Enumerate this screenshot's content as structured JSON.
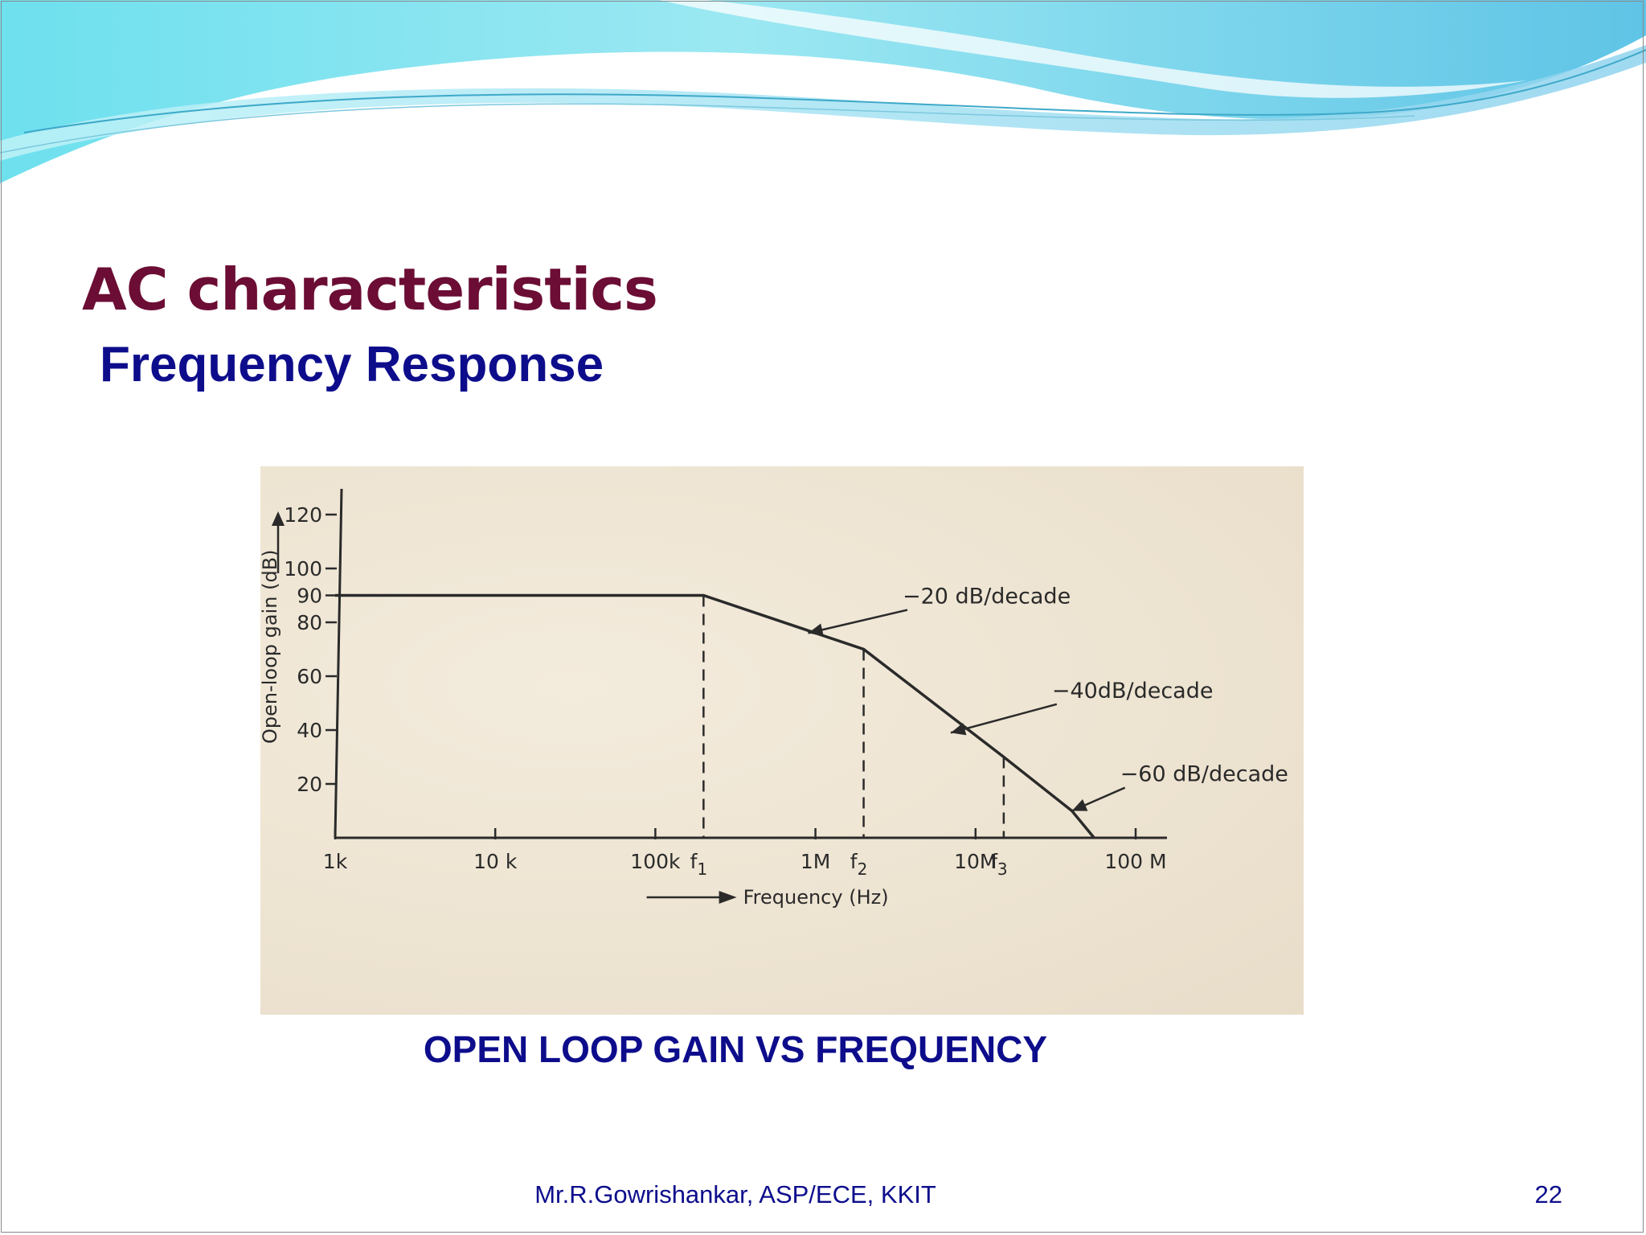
{
  "slide": {
    "title": "AC characteristics",
    "subtitle": "Frequency Response",
    "caption": "OPEN LOOP GAIN VS FREQUENCY",
    "footer_author": "Mr.R.Gowrishankar, ASP/ECE, KKIT",
    "page_number": "22"
  },
  "colors": {
    "title": "#6b0d34",
    "subtitle": "#0d0d8c",
    "chart_background": "#efe6d5",
    "ink": "#2a2a2a"
  },
  "chart_data": {
    "type": "line",
    "xscale": "log",
    "ylabel": "Open-loop gain (dB)",
    "xlabel": "Frequency (Hz)",
    "xlim": [
      1000,
      200000000
    ],
    "ylim": [
      0,
      120
    ],
    "x_ticks": [
      {
        "value": 1000,
        "label": "1k"
      },
      {
        "value": 10000,
        "label": "10 k"
      },
      {
        "value": 100000,
        "label": "100k"
      },
      {
        "value": 1000000,
        "label": "1M"
      },
      {
        "value": 10000000,
        "label": "10M"
      },
      {
        "value": 100000000,
        "label": "100 M"
      }
    ],
    "y_ticks": [
      {
        "value": 20,
        "label": "20"
      },
      {
        "value": 40,
        "label": "40"
      },
      {
        "value": 60,
        "label": "60"
      },
      {
        "value": 80,
        "label": "80"
      },
      {
        "value": 90,
        "label": "90"
      },
      {
        "value": 100,
        "label": "100"
      },
      {
        "value": 120,
        "label": "120"
      }
    ],
    "series": [
      {
        "points": [
          {
            "x": 1000,
            "y": 90
          },
          {
            "x": 200000,
            "y": 90
          },
          {
            "x": 2000000,
            "y": 70
          },
          {
            "x": 15000000,
            "y": 30
          },
          {
            "x": 40000000,
            "y": 10
          },
          {
            "x": 55000000,
            "y": 0
          }
        ]
      }
    ],
    "markers": [
      {
        "label": "f",
        "sub": "1",
        "x": 200000,
        "y": 90
      },
      {
        "label": "f",
        "sub": "2",
        "x": 2000000,
        "y": 70
      },
      {
        "label": "f",
        "sub": "3",
        "x": 15000000,
        "y": 30
      }
    ],
    "annotations": [
      {
        "text": "−20 dB/decade",
        "x": 3500000,
        "y": 87,
        "target_x": 900000,
        "target_y": 76
      },
      {
        "text": "−40dB/decade",
        "x": 30000000,
        "y": 52,
        "target_x": 7000000,
        "target_y": 39
      },
      {
        "text": "−60 dB/decade",
        "x": 80000000,
        "y": 21,
        "target_x": 40000000,
        "target_y": 10
      }
    ]
  }
}
